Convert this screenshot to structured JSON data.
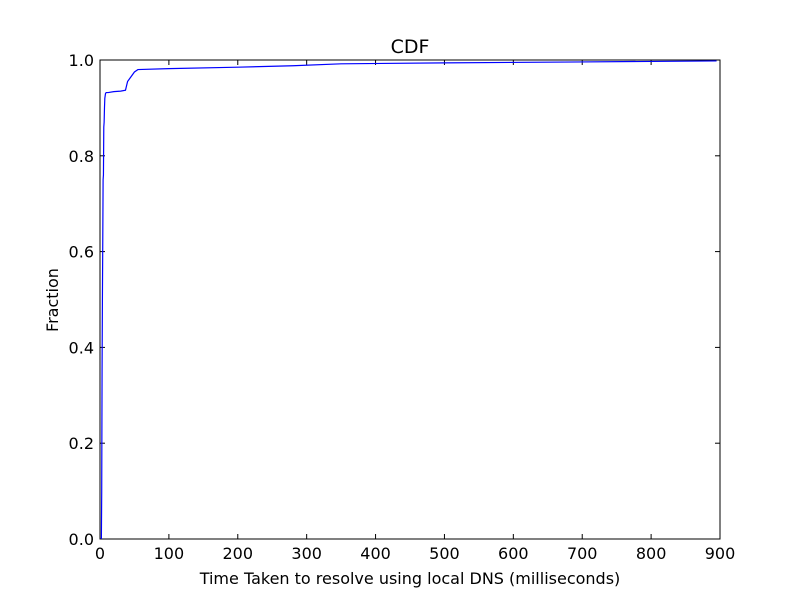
{
  "chart_data": {
    "type": "line",
    "title": "CDF",
    "xlabel": "Time Taken to resolve using local DNS (milliseconds)",
    "ylabel": "Fraction",
    "xlim": [
      0,
      900
    ],
    "ylim": [
      0.0,
      1.0
    ],
    "xticks": [
      0,
      100,
      200,
      300,
      400,
      500,
      600,
      700,
      800,
      900
    ],
    "xtick_labels": [
      "0",
      "100",
      "200",
      "300",
      "400",
      "500",
      "600",
      "700",
      "800",
      "900"
    ],
    "yticks": [
      0.0,
      0.2,
      0.4,
      0.6,
      0.8,
      1.0
    ],
    "ytick_labels": [
      "0.0",
      "0.2",
      "0.4",
      "0.6",
      "0.8",
      "1.0"
    ],
    "grid": false,
    "series": [
      {
        "color": "#0000ff",
        "x": [
          2,
          2.5,
          3,
          3.5,
          4,
          4.5,
          5,
          5.5,
          6,
          6.5,
          7,
          8,
          9,
          12,
          20,
          30,
          37,
          40,
          45,
          50,
          55,
          100,
          200,
          280,
          350,
          500,
          700,
          895
        ],
        "y": [
          0.0,
          0.1,
          0.35,
          0.5,
          0.62,
          0.75,
          0.76,
          0.86,
          0.87,
          0.9,
          0.92,
          0.93,
          0.932,
          0.932,
          0.934,
          0.935,
          0.937,
          0.955,
          0.965,
          0.975,
          0.98,
          0.982,
          0.985,
          0.988,
          0.992,
          0.994,
          0.996,
          0.998
        ]
      }
    ]
  }
}
